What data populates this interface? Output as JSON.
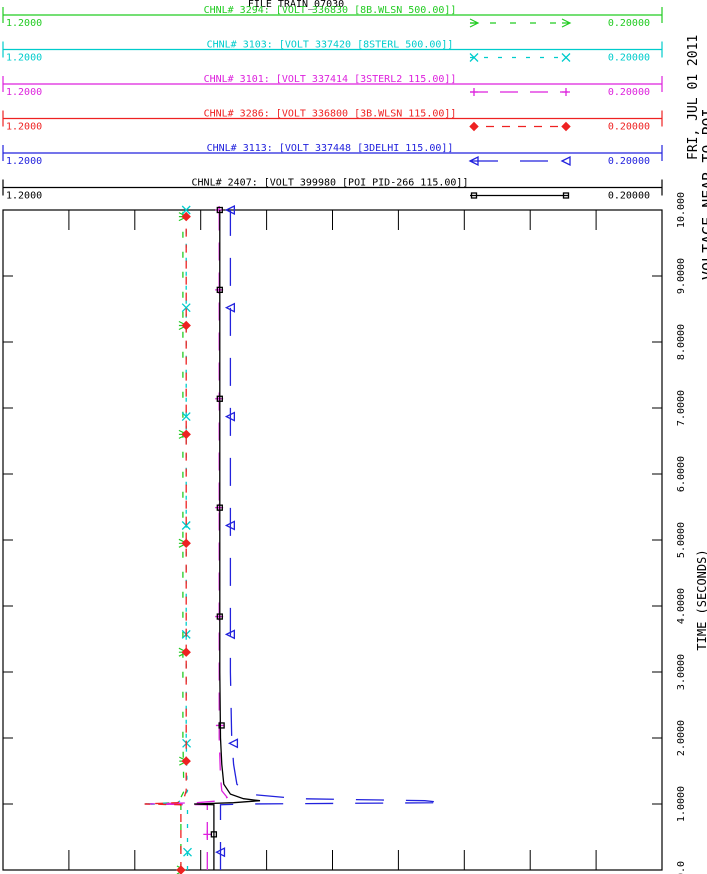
{
  "chart_data": {
    "type": "line",
    "top_title": "FILE  TRAIN_07030",
    "date": "FRI, JUL 01 2011",
    "side_title": "VOLTAGE NEAR TO POI",
    "xlabel": "TIME (SECONDS)",
    "xlim": [
      0,
      10
    ],
    "x_ticks": [
      "0.0",
      "1.0000",
      "2.0000",
      "3.0000",
      "4.0000",
      "5.0000",
      "6.0000",
      "7.0000",
      "8.0000",
      "9.0000",
      "10.000"
    ],
    "series": [
      {
        "name": "CHNL# 3294: [VOLT 336830 [8B.WLSN      500.00]]",
        "color": "#22cc22",
        "ymin": "1.2000",
        "ymax": "0.20000",
        "marker": "arrow",
        "dash": "6,14",
        "x": [
          0,
          0.99,
          1.0,
          1.02,
          1.1,
          1.2,
          1.4,
          2,
          3,
          4,
          5,
          6,
          7,
          8,
          9,
          10
        ],
        "y": [
          0.93,
          0.93,
          0.985,
          0.94,
          0.93,
          0.925,
          0.926,
          0.927,
          0.927,
          0.927,
          0.927,
          0.927,
          0.927,
          0.927,
          0.927,
          0.927
        ]
      },
      {
        "name": "CHNL# 3103: [VOLT 337420 [8STERL       500.00]]",
        "color": "#00cccc",
        "ymin": "1.2000",
        "ymax": "0.20000",
        "marker": "x",
        "dash": "4,10",
        "x": [
          0,
          0.99,
          1.0,
          1.02,
          1.1,
          1.2,
          1.4,
          2,
          3,
          4,
          5,
          6,
          7,
          8,
          9,
          10
        ],
        "y": [
          0.92,
          0.92,
          0.985,
          0.935,
          0.925,
          0.92,
          0.921,
          0.922,
          0.922,
          0.922,
          0.922,
          0.922,
          0.922,
          0.922,
          0.922,
          0.922
        ]
      },
      {
        "name": "CHNL# 3101: [VOLT 337414 [3STERL2      115.00]]",
        "color": "#dd22dd",
        "ymin": "1.2000",
        "ymax": "0.20000",
        "marker": "plus",
        "dash": "18,12",
        "x": [
          0,
          0.99,
          1.0,
          1.02,
          1.05,
          1.1,
          1.2,
          1.4,
          2,
          3,
          4,
          5,
          6,
          7,
          8,
          9,
          10
        ],
        "y": [
          0.89,
          0.89,
          0.985,
          0.905,
          0.87,
          0.86,
          0.868,
          0.87,
          0.872,
          0.872,
          0.872,
          0.872,
          0.872,
          0.872,
          0.872,
          0.872,
          0.872
        ]
      },
      {
        "name": "CHNL# 3286: [VOLT 336800 [3B.WLSN      115.00]]",
        "color": "#ee2222",
        "ymin": "1.2000",
        "ymax": "0.20000",
        "marker": "diamond",
        "dash": "8,8",
        "x": [
          0,
          0.99,
          1.0,
          1.02,
          1.1,
          1.2,
          1.4,
          2,
          3,
          4,
          5,
          6,
          7,
          8,
          9,
          10
        ],
        "y": [
          0.93,
          0.93,
          0.985,
          0.935,
          0.925,
          0.922,
          0.922,
          0.922,
          0.922,
          0.922,
          0.922,
          0.922,
          0.922,
          0.922,
          0.922,
          0.922
        ]
      },
      {
        "name": "CHNL# 3113: [VOLT 337448 [3DELHI       115.00]]",
        "color": "#2222dd",
        "ymin": "1.2000",
        "ymax": "0.20000",
        "marker": "triangle",
        "dash": "28,22",
        "x": [
          0,
          0.99,
          1.0,
          1.02,
          1.05,
          1.08,
          1.15,
          1.3,
          1.6,
          2,
          3,
          4,
          5,
          6,
          7,
          8,
          9,
          10
        ],
        "y": [
          0.87,
          0.87,
          0.83,
          0.53,
          0.56,
          0.75,
          0.83,
          0.845,
          0.85,
          0.853,
          0.855,
          0.855,
          0.855,
          0.855,
          0.855,
          0.855,
          0.855,
          0.855
        ]
      },
      {
        "name": "CHNL# 2407: [VOLT 399980 [POI PID-266 115.00]]",
        "color": "#000000",
        "ymin": "1.2000",
        "ymax": "0.20000",
        "marker": "square",
        "dash": "",
        "x": [
          0,
          0.99,
          1.0,
          1.02,
          1.05,
          1.08,
          1.15,
          1.3,
          1.6,
          2,
          3,
          4,
          5,
          6,
          7,
          8,
          9,
          10
        ],
        "y": [
          0.88,
          0.88,
          0.91,
          0.85,
          0.81,
          0.835,
          0.855,
          0.865,
          0.868,
          0.87,
          0.871,
          0.871,
          0.871,
          0.871,
          0.871,
          0.871,
          0.871,
          0.871
        ]
      }
    ]
  }
}
